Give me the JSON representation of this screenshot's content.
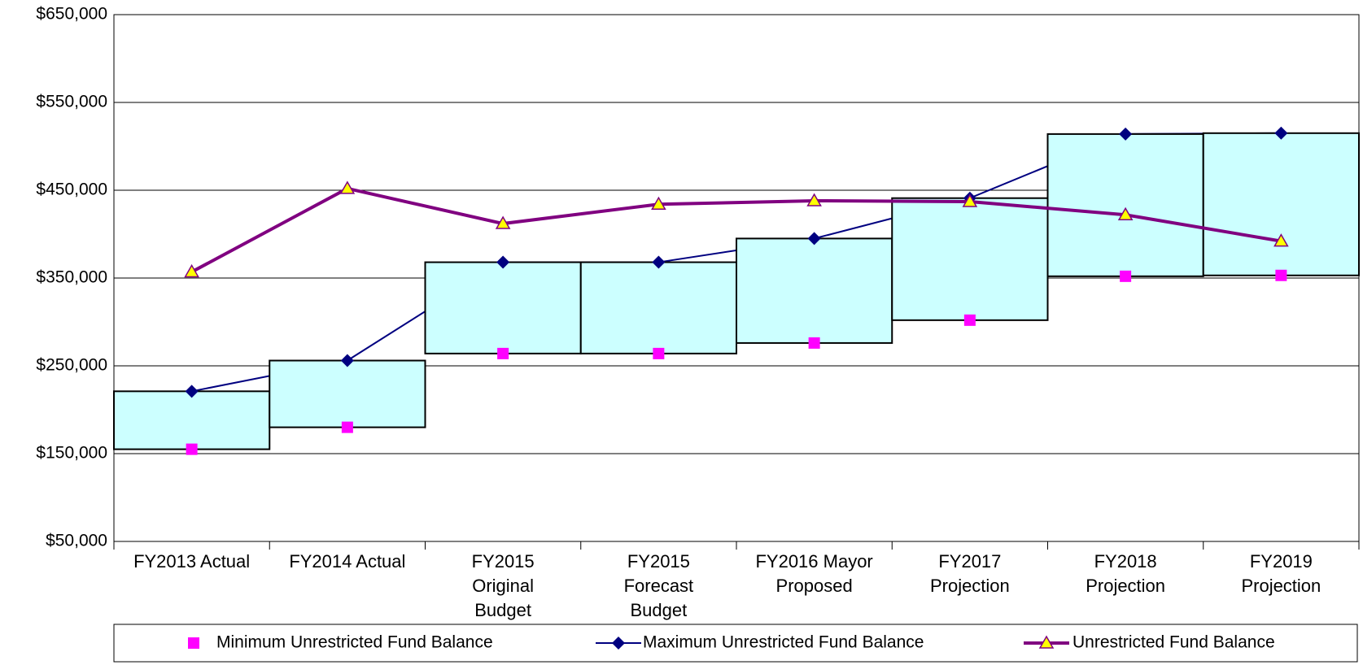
{
  "chart_data": {
    "type": "range-line",
    "categories": [
      "FY2013 Actual",
      "FY2014 Actual",
      "FY2015 Original Budget",
      "FY2015 Forecast Budget",
      "FY2016 Mayor Proposed",
      "FY2017 Projection",
      "FY2018 Projection",
      "FY2019 Projection"
    ],
    "series": [
      {
        "name": "Minimum Unrestricted Fund Balance",
        "color": "#ff00ff",
        "values": [
          155000,
          180000,
          264000,
          264000,
          276000,
          302000,
          352000,
          353000
        ]
      },
      {
        "name": "Maximum Unrestricted Fund Balance",
        "color": "#000080",
        "values": [
          221000,
          256000,
          368000,
          368000,
          395000,
          441000,
          514000,
          515000
        ]
      },
      {
        "name": "Unrestricted Fund Balance",
        "color": "#800080",
        "marker_color": "#ffff00",
        "values": [
          357000,
          452000,
          412000,
          434000,
          438000,
          437000,
          422000,
          392000
        ]
      }
    ],
    "range_fill": "#ccffff",
    "ylim": [
      50000,
      650000
    ],
    "yticks": [
      {
        "value": 50000,
        "label": "$50,000"
      },
      {
        "value": 150000,
        "label": "$150,000"
      },
      {
        "value": 250000,
        "label": "$250,000"
      },
      {
        "value": 350000,
        "label": "$350,000"
      },
      {
        "value": 450000,
        "label": "$450,000"
      },
      {
        "value": 550000,
        "label": "$550,000"
      },
      {
        "value": 650000,
        "label": "$650,000"
      }
    ],
    "grid": true,
    "legend": "bottom"
  }
}
